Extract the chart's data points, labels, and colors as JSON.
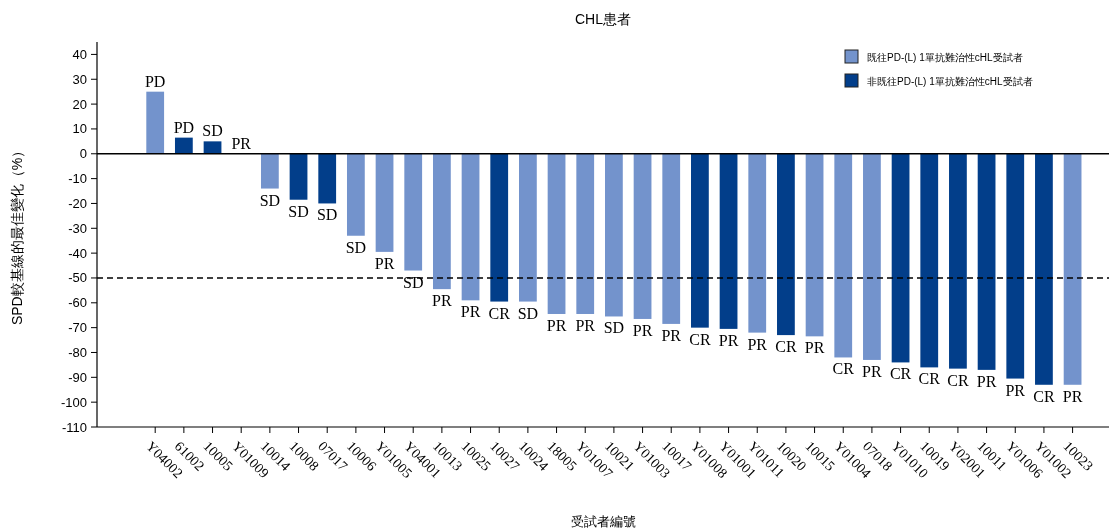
{
  "chart_data": {
    "type": "bar",
    "title": "CHL患者",
    "xlabel": "受試者編號",
    "ylabel": "SPD較基線的最佳變化（%）",
    "categories": [
      "Y04002",
      "61002",
      "10005",
      "Y01009",
      "10014",
      "10008",
      "07017",
      "10006",
      "Y01005",
      "Y04001",
      "10013",
      "10025",
      "10027",
      "10024",
      "18005",
      "Y01007",
      "10021",
      "Y01003",
      "10017",
      "Y01008",
      "Y01001",
      "Y01011",
      "10020",
      "10015",
      "Y01004",
      "07018",
      "Y01010",
      "10019",
      "Y02001",
      "10011",
      "Y01006",
      "Y01002",
      "10023"
    ],
    "series": [
      {
        "name": "既往PD-(L) 1單抗難治性cHL受試者",
        "color": "#7393cc",
        "values": [
          25,
          null,
          null,
          0,
          -14,
          null,
          null,
          -33,
          -39.5,
          -47,
          -54.5,
          -59,
          null,
          -59.5,
          -64.5,
          -64.5,
          -65.5,
          -66.5,
          -68.5,
          null,
          null,
          -72,
          null,
          -73.5,
          -82,
          -83,
          null,
          null,
          null,
          null,
          null,
          null,
          -93
        ],
        "value_labels": [
          "PD",
          null,
          null,
          "PR",
          "SD",
          null,
          null,
          "SD",
          "PR",
          "SD",
          "PR",
          "PR",
          null,
          "SD",
          "PR",
          "PR",
          "SD",
          "PR",
          "PR",
          null,
          null,
          "PR",
          null,
          "PR",
          "CR",
          "PR",
          null,
          null,
          null,
          null,
          null,
          null,
          "PR"
        ]
      },
      {
        "name": "非既往PD-(L) 1單抗難治性cHL受試者",
        "color": "#023e8a",
        "values": [
          null,
          6.5,
          5,
          null,
          null,
          -18.5,
          -20,
          null,
          null,
          null,
          null,
          null,
          -59.5,
          null,
          null,
          null,
          null,
          null,
          null,
          -70,
          -70.5,
          null,
          -73,
          null,
          null,
          null,
          -84,
          -86,
          -86.5,
          -87,
          -90.5,
          -93,
          null
        ],
        "value_labels": [
          null,
          "PD",
          "SD",
          null,
          null,
          "SD",
          "SD",
          null,
          null,
          null,
          null,
          null,
          "CR",
          null,
          null,
          null,
          null,
          null,
          null,
          "CR",
          "PR",
          null,
          "CR",
          null,
          null,
          null,
          "CR",
          "CR",
          "CR",
          "PR",
          "PR",
          "CR",
          null
        ]
      }
    ],
    "ylim": [
      -110,
      45
    ],
    "yticks": [
      40,
      30,
      20,
      10,
      0,
      -10,
      -20,
      -30,
      -40,
      -50,
      -60,
      -70,
      -80,
      -90,
      -100,
      -110
    ],
    "ref_lines": [
      {
        "axis": "y",
        "value": 0,
        "line_style": "solid",
        "color": "#000000"
      },
      {
        "axis": "y",
        "value": -50,
        "line_style": "dashed",
        "color": "#000000"
      }
    ],
    "grid": false,
    "legend": "top right"
  }
}
